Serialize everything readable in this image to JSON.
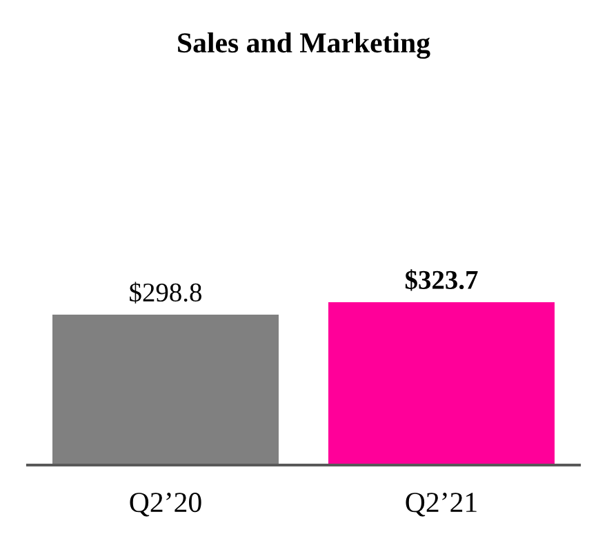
{
  "chart_data": {
    "type": "bar",
    "title": "Sales and Marketing",
    "categories": [
      "Q2’20",
      "Q2’21"
    ],
    "values": [
      298.8,
      323.7
    ],
    "colors": [
      "#808080",
      "#ff0099"
    ],
    "value_labels": [
      "$298.8",
      "$323.7"
    ],
    "grid": false,
    "legend": false
  }
}
